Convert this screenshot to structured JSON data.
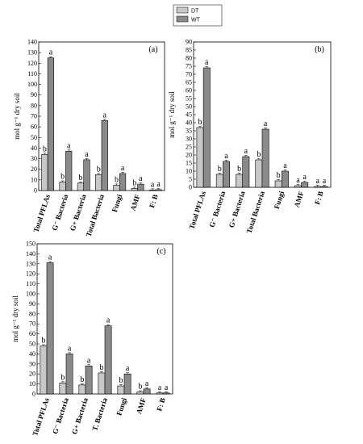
{
  "legend": [
    {
      "label": "DT",
      "color": "#c8c8c8"
    },
    {
      "label": "WT",
      "color": "#8a8a8a"
    }
  ],
  "chart_data": [
    {
      "type": "bar",
      "panel_label": "(a)",
      "ylabel": "mol g⁻¹ dry soil",
      "ylim": [
        0,
        140
      ],
      "yticks": [
        0,
        10,
        20,
        30,
        40,
        50,
        60,
        70,
        80,
        90,
        100,
        110,
        120,
        130,
        140
      ],
      "categories": [
        "Total PFLAs",
        "G⁻ Bacteria",
        "G+ Bacteria",
        "Total Bacteria",
        "Fungi",
        "AMF",
        "F: B"
      ],
      "series": [
        {
          "name": "DT",
          "values": [
            34,
            8,
            7,
            15,
            5,
            2,
            0.5
          ],
          "letters": [
            "b",
            "b",
            "b",
            "b",
            "b",
            "b",
            "a"
          ]
        },
        {
          "name": "WT",
          "values": [
            125,
            37,
            29,
            66,
            16,
            6,
            0.8
          ],
          "letters": [
            "a",
            "a",
            "a",
            "a",
            "a",
            "a",
            "a"
          ]
        }
      ]
    },
    {
      "type": "bar",
      "panel_label": "(b)",
      "ylabel": "mol g⁻¹ dry soil",
      "ylim": [
        0,
        90
      ],
      "yticks": [
        0,
        5,
        10,
        15,
        20,
        25,
        30,
        35,
        40,
        45,
        50,
        55,
        60,
        65,
        70,
        75,
        80,
        85,
        90
      ],
      "categories": [
        "Total PFLAs",
        "G⁻ Bacteria",
        "G+ Bacteria",
        "Total Bacteria",
        "Fungi",
        "AMF",
        "F: B"
      ],
      "series": [
        {
          "name": "DT",
          "values": [
            37,
            8,
            8,
            17,
            4,
            1,
            0.5
          ],
          "letters": [
            "b",
            "b",
            "b",
            "b",
            "b",
            "a",
            "a"
          ]
        },
        {
          "name": "WT",
          "values": [
            74,
            16,
            19,
            36,
            10,
            3,
            0.5
          ],
          "letters": [
            "a",
            "a",
            "a",
            "a",
            "a",
            "a",
            "a"
          ]
        }
      ]
    },
    {
      "type": "bar",
      "panel_label": "(c)",
      "ylabel": "mol g⁻¹ dry soil",
      "ylim": [
        0,
        150
      ],
      "yticks": [
        0,
        10,
        20,
        30,
        40,
        50,
        60,
        70,
        80,
        90,
        100,
        110,
        120,
        130,
        140,
        150
      ],
      "categories": [
        "Total PFLAs",
        "G⁻ Bacteria",
        "G+ Bacteria",
        "T. Bacteria",
        "Fungi",
        "AMF",
        "F: B"
      ],
      "series": [
        {
          "name": "DT",
          "values": [
            48,
            11,
            9,
            21,
            8,
            2,
            1
          ],
          "letters": [
            "b",
            "b",
            "b",
            "b",
            "b",
            "b",
            "a"
          ]
        },
        {
          "name": "WT",
          "values": [
            131,
            40,
            28,
            68,
            20,
            5,
            1
          ],
          "letters": [
            "a",
            "a",
            "a",
            "a",
            "a",
            "a",
            "a"
          ]
        }
      ]
    }
  ]
}
